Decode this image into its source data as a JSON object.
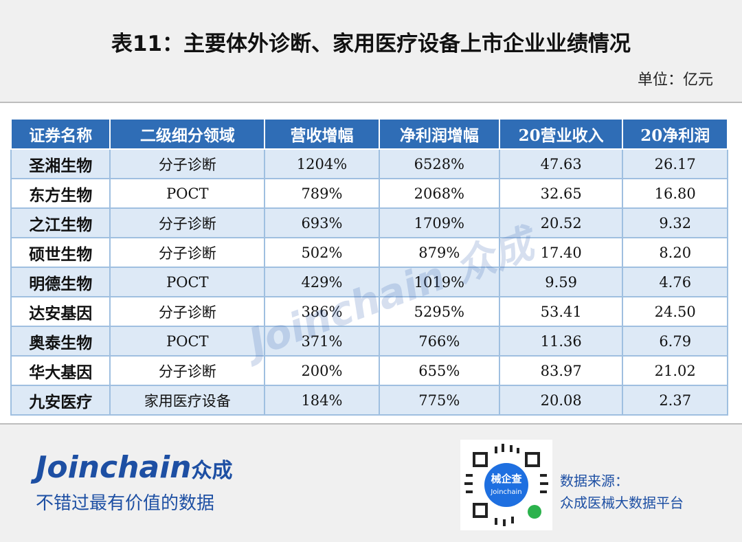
{
  "header": {
    "title": "表11：主要体外诊断、家用医疗设备上市企业业绩情况",
    "unit": "单位：亿元"
  },
  "table": {
    "columns": [
      "证券名称",
      "二级细分领域",
      "营收增幅",
      "净利润增幅",
      "20营业收入",
      "20净利润"
    ],
    "rows": [
      [
        "圣湘生物",
        "分子诊断",
        "1204%",
        "6528%",
        "47.63",
        "26.17"
      ],
      [
        "东方生物",
        "POCT",
        "789%",
        "2068%",
        "32.65",
        "16.80"
      ],
      [
        "之江生物",
        "分子诊断",
        "693%",
        "1709%",
        "20.52",
        "9.32"
      ],
      [
        "硕世生物",
        "分子诊断",
        "502%",
        "879%",
        "17.40",
        "8.20"
      ],
      [
        "明德生物",
        "POCT",
        "429%",
        "1019%",
        "9.59",
        "4.76"
      ],
      [
        "达安基因",
        "分子诊断",
        "386%",
        "5295%",
        "53.41",
        "24.50"
      ],
      [
        "奥泰生物",
        "POCT",
        "371%",
        "766%",
        "11.36",
        "6.79"
      ],
      [
        "华大基因",
        "分子诊断",
        "200%",
        "655%",
        "83.97",
        "21.02"
      ],
      [
        "九安医疗",
        "家用医疗设备",
        "184%",
        "775%",
        "20.08",
        "2.37"
      ]
    ]
  },
  "watermark": "Joinchain 众成",
  "footer": {
    "brand": "Joinchain",
    "brand_cn": "众成",
    "tagline": "不错过最有价值的数据",
    "qr_title": "械企查",
    "qr_sub": "Joinchain",
    "source_label": "数据来源：",
    "source": "众成医械大数据平台"
  }
}
